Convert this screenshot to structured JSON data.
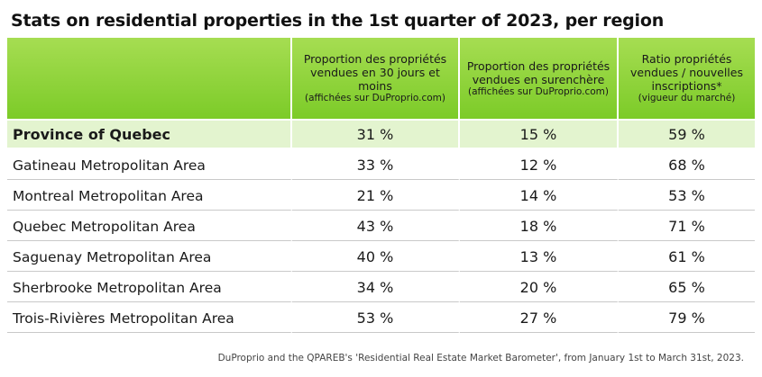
{
  "title": "Stats on residential properties in the 1st quarter of 2023, per region",
  "header": {
    "col0": "",
    "col1_main": "Proportion des propriétés vendues en 30 jours et moins",
    "col1_sub": "(affichées sur DuProprio.com)",
    "col2_main": "Proportion des propriétés vendues en surenchère",
    "col2_sub": "(affichées sur DuProprio.com)",
    "col3_main": "Ratio propriétés vendues / nouvelles inscriptions*",
    "col3_sub": "(vigueur du marché)"
  },
  "rows": [
    {
      "region": "Province of Quebec",
      "sold_30_days": "31 %",
      "overbid": "15 %",
      "ratio": "59 %"
    },
    {
      "region": "Gatineau Metropolitan Area",
      "sold_30_days": "33 %",
      "overbid": "12 %",
      "ratio": "68 %"
    },
    {
      "region": "Montreal Metropolitan Area",
      "sold_30_days": "21 %",
      "overbid": "14 %",
      "ratio": "53 %"
    },
    {
      "region": "Quebec Metropolitan Area",
      "sold_30_days": "43 %",
      "overbid": "18 %",
      "ratio": "71 %"
    },
    {
      "region": "Saguenay Metropolitan Area",
      "sold_30_days": "40 %",
      "overbid": "13 %",
      "ratio": "61 %"
    },
    {
      "region": "Sherbrooke Metropolitan Area",
      "sold_30_days": "34 %",
      "overbid": "20 %",
      "ratio": "65 %"
    },
    {
      "region": "Trois-Rivières Metropolitan Area",
      "sold_30_days": "53 %",
      "overbid": "27 %",
      "ratio": "79 %"
    }
  ],
  "footer": "DuProprio and the QPAREB's 'Residential Real Estate Market Barometer', from January 1st to March 31st, 2023.",
  "colors": {
    "header_green": "#7ccb28",
    "highlight_row": "#e3f4cf"
  }
}
